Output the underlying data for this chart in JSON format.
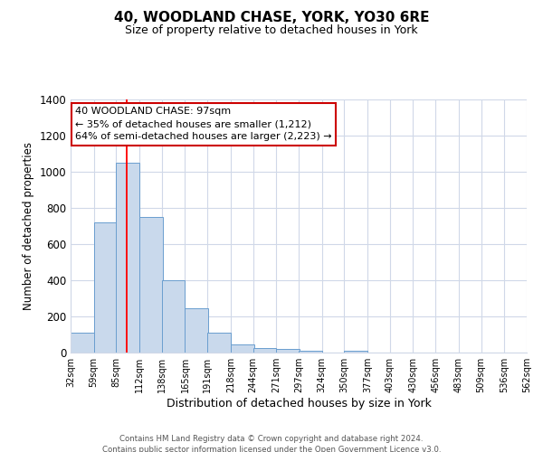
{
  "title": "40, WOODLAND CHASE, YORK, YO30 6RE",
  "subtitle": "Size of property relative to detached houses in York",
  "xlabel": "Distribution of detached houses by size in York",
  "ylabel": "Number of detached properties",
  "bar_values": [
    110,
    720,
    1050,
    750,
    400,
    245,
    110,
    45,
    25,
    20,
    10,
    0,
    10
  ],
  "bin_edges": [
    32,
    59,
    85,
    112,
    138,
    165,
    191,
    218,
    244,
    271,
    297,
    324,
    350,
    377,
    403,
    430,
    456,
    483,
    509,
    536,
    562
  ],
  "tick_labels": [
    "32sqm",
    "59sqm",
    "85sqm",
    "112sqm",
    "138sqm",
    "165sqm",
    "191sqm",
    "218sqm",
    "244sqm",
    "271sqm",
    "297sqm",
    "324sqm",
    "350sqm",
    "377sqm",
    "403sqm",
    "430sqm",
    "456sqm",
    "483sqm",
    "509sqm",
    "536sqm",
    "562sqm"
  ],
  "bar_color": "#c9d9ec",
  "bar_edge_color": "#6a9ecf",
  "red_line_x": 97,
  "ylim": [
    0,
    1400
  ],
  "yticks": [
    0,
    200,
    400,
    600,
    800,
    1000,
    1200,
    1400
  ],
  "annotation_title": "40 WOODLAND CHASE: 97sqm",
  "annotation_line1": "← 35% of detached houses are smaller (1,212)",
  "annotation_line2": "64% of semi-detached houses are larger (2,223) →",
  "annotation_box_color": "#ffffff",
  "annotation_box_edge": "#cc0000",
  "footer1": "Contains HM Land Registry data © Crown copyright and database right 2024.",
  "footer2": "Contains public sector information licensed under the Open Government Licence v3.0.",
  "background_color": "#ffffff",
  "grid_color": "#d0d8e8"
}
